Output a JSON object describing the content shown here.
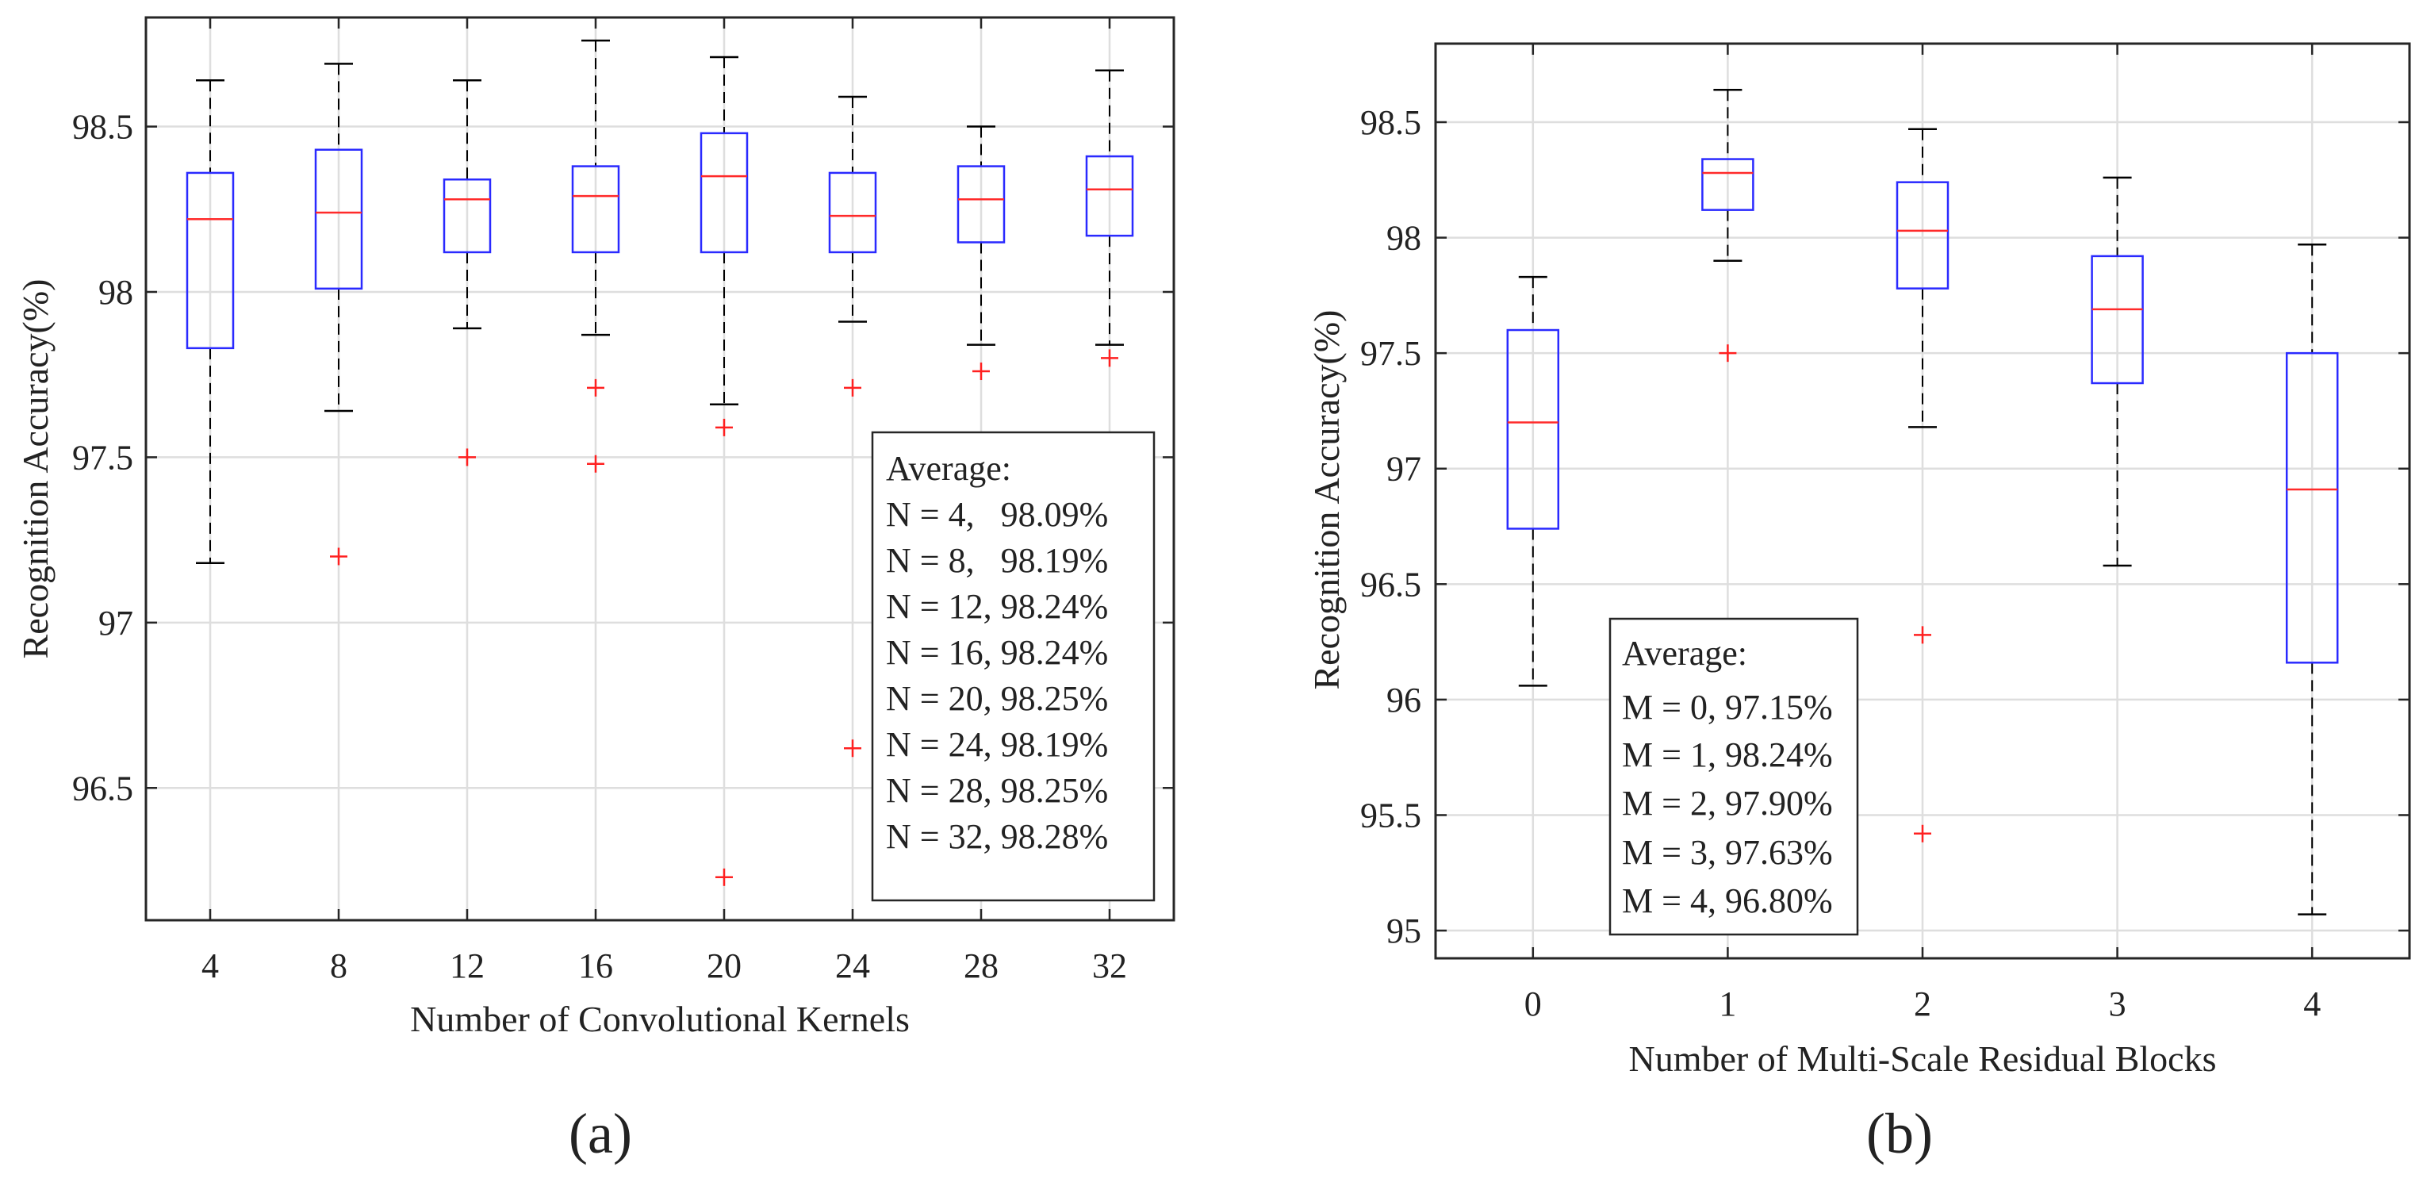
{
  "chart_data": [
    {
      "type": "box",
      "panel_label": "(a)",
      "xlabel": "Number of Convolutional Kernels",
      "ylabel": "Recognition Accuracy(%)",
      "ylim": [
        96.1,
        98.83
      ],
      "yticks": [
        96.5,
        97,
        97.5,
        98,
        98.5
      ],
      "ytick_labels": [
        "96.5",
        "97",
        "97.5",
        "98",
        "98.5"
      ],
      "categories": [
        "4",
        "8",
        "12",
        "16",
        "20",
        "24",
        "28",
        "32"
      ],
      "grid": true,
      "boxes": [
        {
          "min": 97.18,
          "q1": 97.83,
          "median": 98.22,
          "q3": 98.36,
          "max": 98.64,
          "outliers": []
        },
        {
          "min": 97.64,
          "q1": 98.01,
          "median": 98.24,
          "q3": 98.43,
          "max": 98.69,
          "outliers": [
            97.2
          ]
        },
        {
          "min": 97.89,
          "q1": 98.12,
          "median": 98.28,
          "q3": 98.34,
          "max": 98.64,
          "outliers": [
            97.5
          ]
        },
        {
          "min": 97.87,
          "q1": 98.12,
          "median": 98.29,
          "q3": 98.38,
          "max": 98.76,
          "outliers": [
            97.71,
            97.48
          ]
        },
        {
          "min": 97.66,
          "q1": 98.12,
          "median": 98.35,
          "q3": 98.48,
          "max": 98.71,
          "outliers": [
            97.59,
            96.23
          ]
        },
        {
          "min": 97.91,
          "q1": 98.12,
          "median": 98.23,
          "q3": 98.36,
          "max": 98.59,
          "outliers": [
            97.71,
            96.62
          ]
        },
        {
          "min": 97.84,
          "q1": 98.15,
          "median": 98.28,
          "q3": 98.38,
          "max": 98.5,
          "outliers": [
            97.76
          ]
        },
        {
          "min": 97.84,
          "q1": 98.17,
          "median": 98.31,
          "q3": 98.41,
          "max": 98.67,
          "outliers": [
            97.8
          ]
        }
      ],
      "legend": {
        "position": "lower-right",
        "title": "Average:",
        "entries": [
          "N = 4,   98.09%",
          "N = 8,   98.19%",
          "N = 12, 98.24%",
          "N = 16, 98.24%",
          "N = 20, 98.25%",
          "N = 24, 98.19%",
          "N = 28, 98.25%",
          "N = 32, 98.28%"
        ]
      }
    },
    {
      "type": "box",
      "panel_label": "(b)",
      "xlabel": "Number of Multi-Scale Residual Blocks",
      "ylabel": "Recognition Accuracy(%)",
      "ylim": [
        94.88,
        98.84
      ],
      "yticks": [
        95,
        95.5,
        96,
        96.5,
        97,
        97.5,
        98,
        98.5
      ],
      "ytick_labels": [
        "95",
        "95.5",
        "96",
        "96.5",
        "97",
        "97.5",
        "98",
        "98.5"
      ],
      "categories": [
        "0",
        "1",
        "2",
        "3",
        "4"
      ],
      "grid": true,
      "boxes": [
        {
          "min": 96.06,
          "q1": 96.74,
          "median": 97.2,
          "q3": 97.6,
          "max": 97.83,
          "outliers": []
        },
        {
          "min": 97.9,
          "q1": 98.12,
          "median": 98.28,
          "q3": 98.34,
          "max": 98.64,
          "outliers": [
            97.5
          ]
        },
        {
          "min": 97.18,
          "q1": 97.78,
          "median": 98.03,
          "q3": 98.24,
          "max": 98.47,
          "outliers": [
            96.28,
            95.42
          ]
        },
        {
          "min": 96.58,
          "q1": 97.37,
          "median": 97.69,
          "q3": 97.92,
          "max": 98.26,
          "outliers": []
        },
        {
          "min": 95.07,
          "q1": 96.16,
          "median": 96.91,
          "q3": 97.5,
          "max": 97.97,
          "outliers": []
        }
      ],
      "legend": {
        "position": "lower-left",
        "title": "Average:",
        "entries": [
          "M = 0, 97.15%",
          "M = 1, 98.24%",
          "M = 2, 97.90%",
          "M = 3, 97.63%",
          "M = 4, 96.80%"
        ]
      }
    }
  ]
}
